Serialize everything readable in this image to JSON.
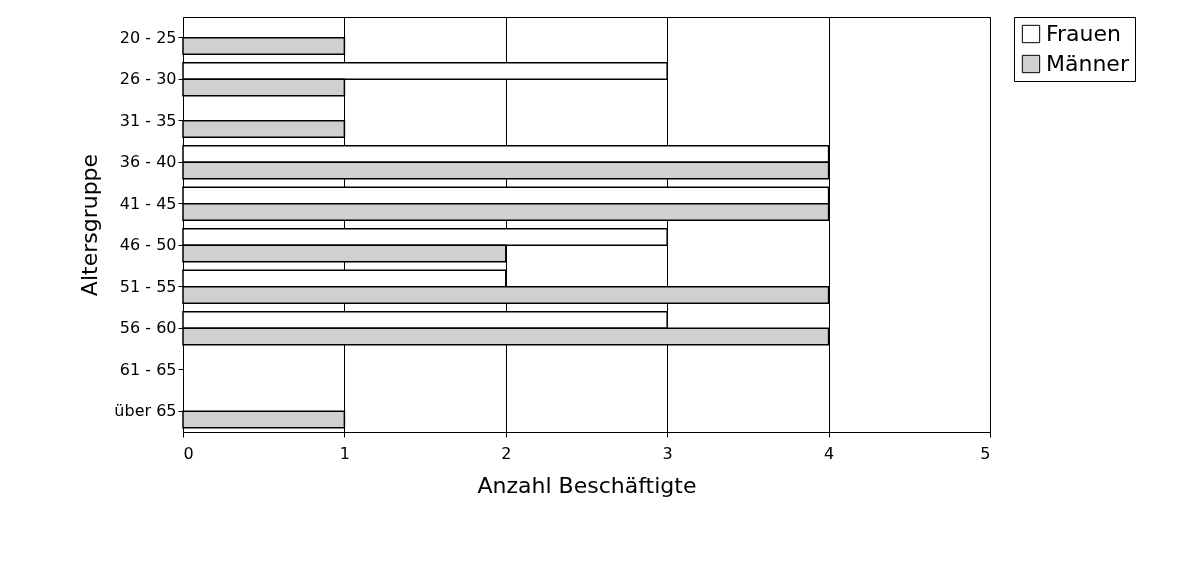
{
  "chart_data": {
    "type": "bar",
    "orientation": "horizontal",
    "xlabel": "Anzahl Beschäftigte",
    "ylabel": "Altersgruppe",
    "categories": [
      "20 - 25",
      "26 - 30",
      "31 - 35",
      "36 - 40",
      "41 - 45",
      "46 - 50",
      "51 - 55",
      "56 - 60",
      "61 - 65",
      "über 65"
    ],
    "series": [
      {
        "name": "Frauen",
        "color": "#ffffff",
        "values": [
          null,
          3,
          null,
          4,
          4,
          3,
          2,
          3,
          null,
          null
        ]
      },
      {
        "name": "Männer",
        "color": "#d0d0d0",
        "values": [
          1,
          1,
          1,
          4,
          4,
          2,
          4,
          4,
          null,
          1
        ]
      }
    ],
    "xlim": [
      0,
      5
    ],
    "xticks": [
      0,
      1,
      2,
      3,
      4,
      5
    ],
    "grid": "x",
    "legend": "right"
  }
}
